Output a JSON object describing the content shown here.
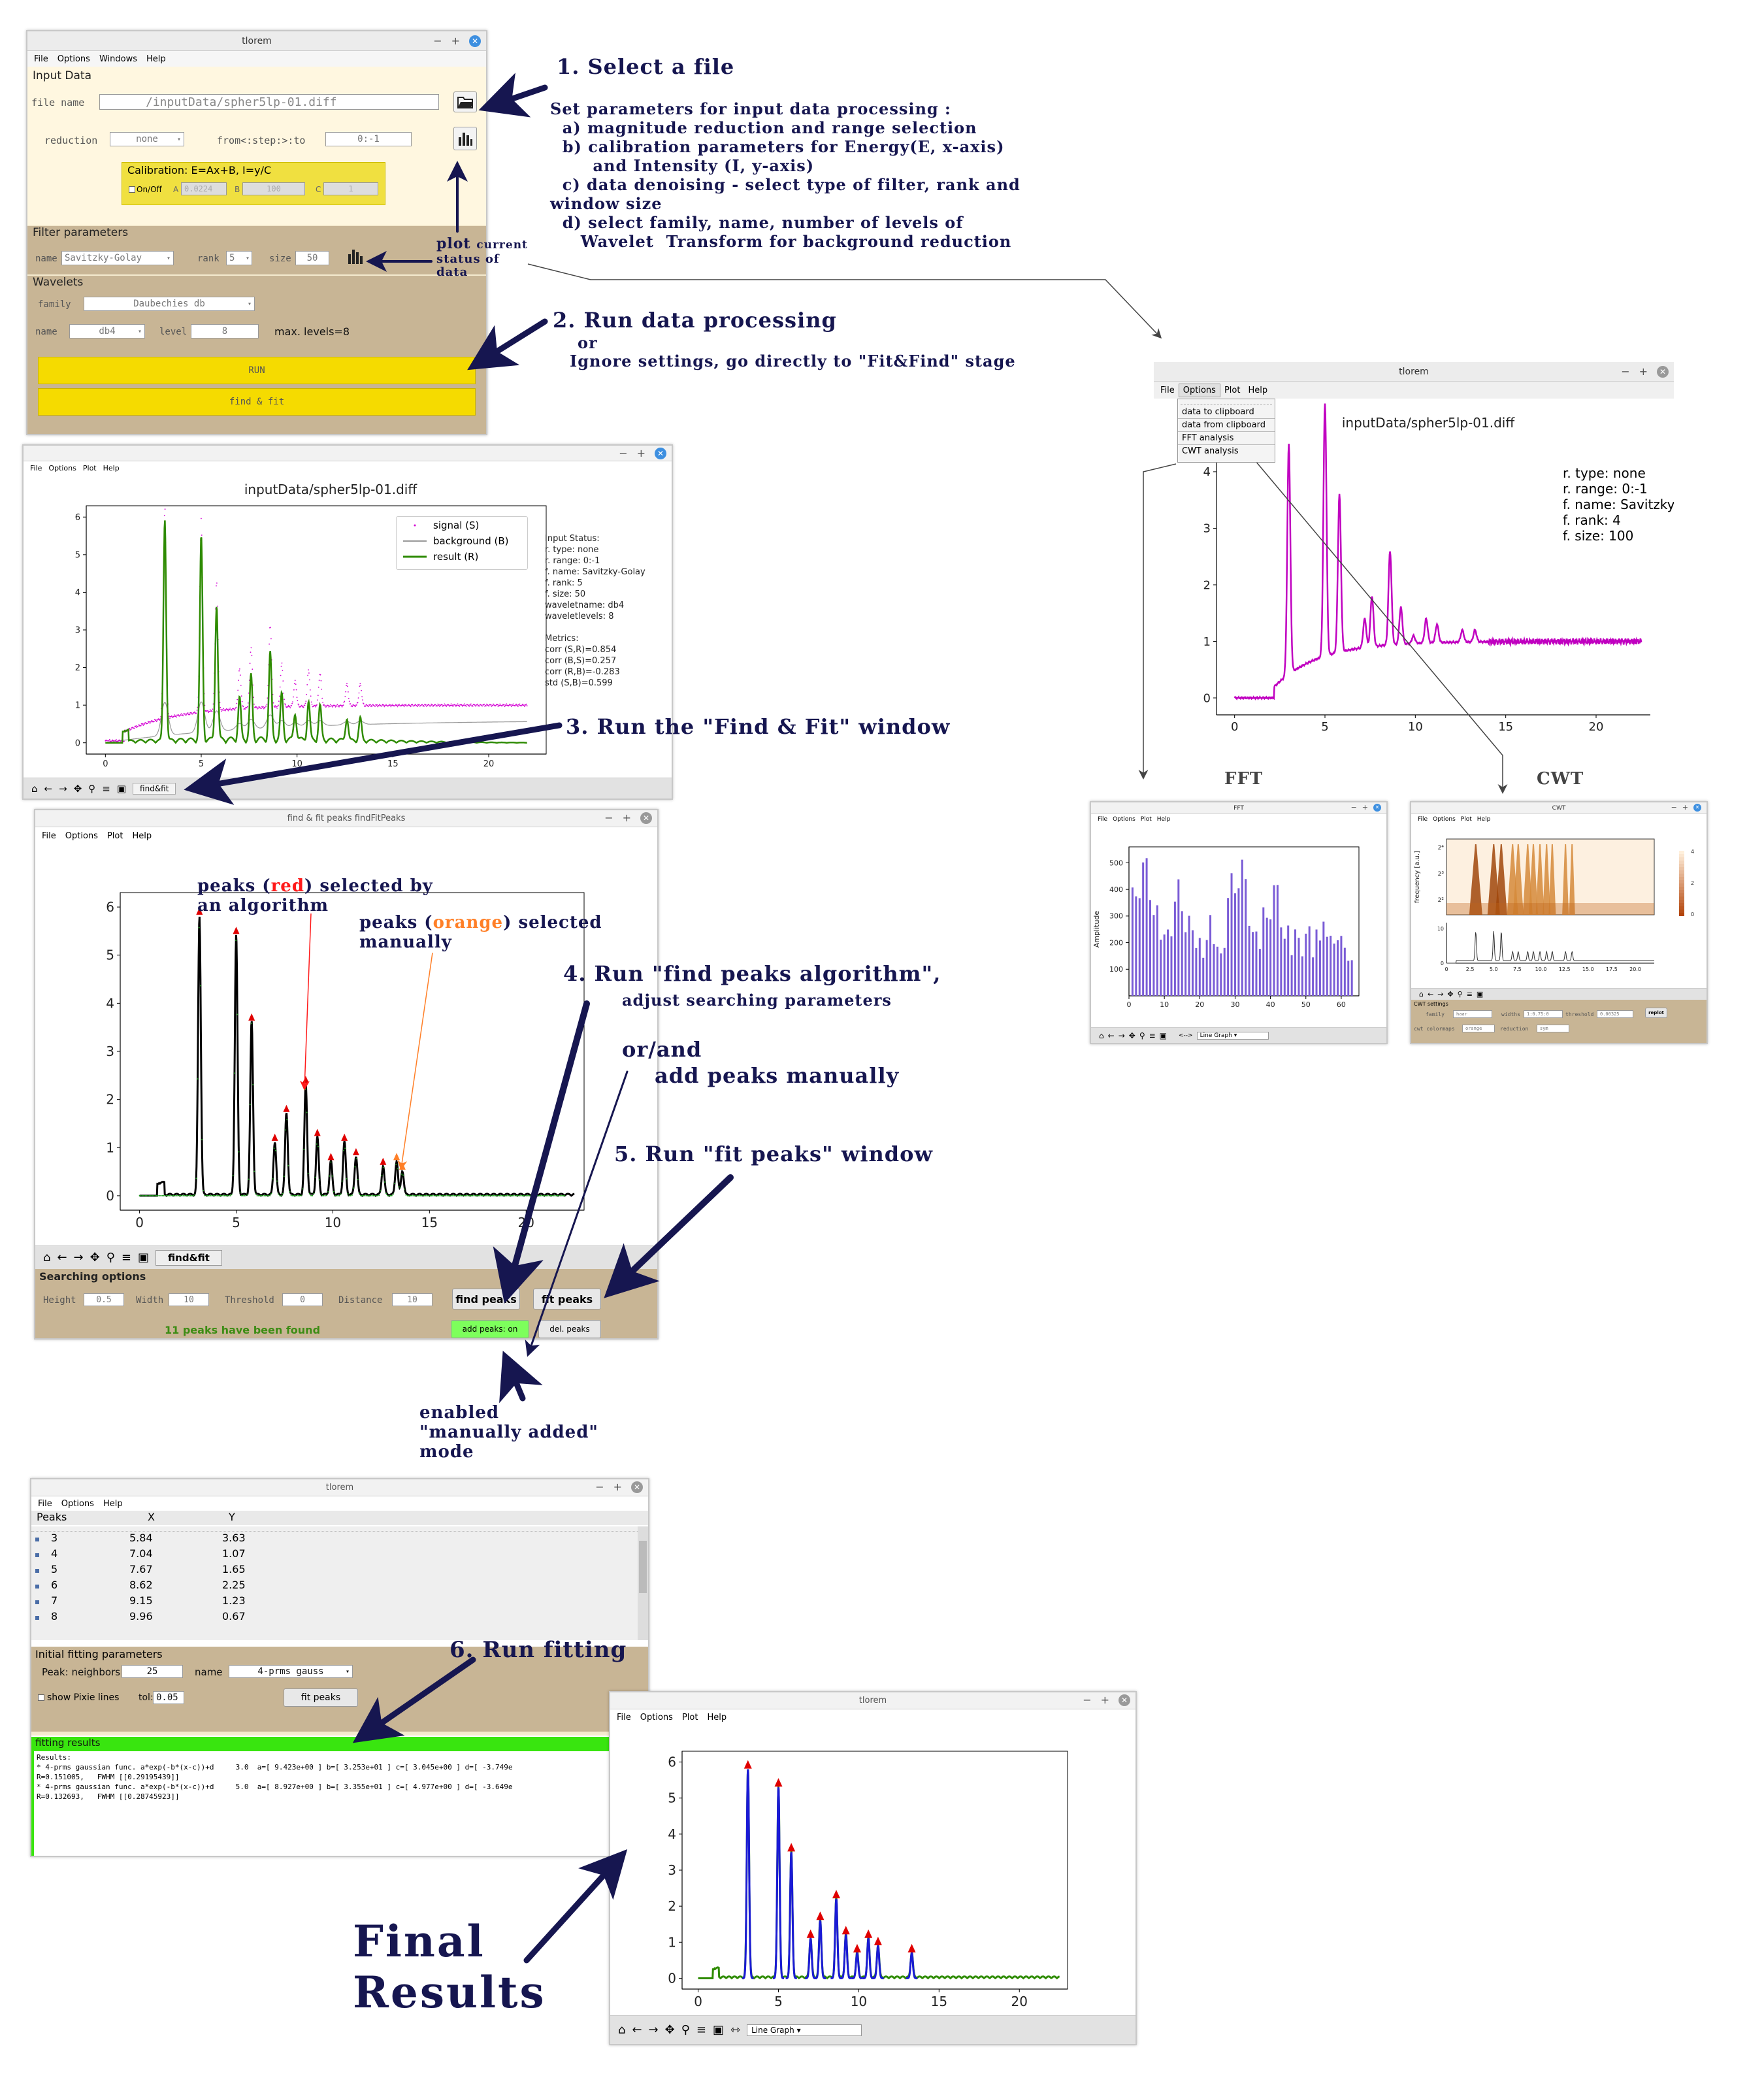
{
  "w1": {
    "title": "tlorem",
    "menu": [
      "File",
      "Options",
      "Windows",
      "Help"
    ],
    "input_data": "Input Data",
    "file_label": "file name",
    "file_value": "/inputData/spher5lp-01.diff",
    "reduction_label": "reduction",
    "reduction_value": "none",
    "range_label": "from<:step:>:to",
    "range_value": "0:-1",
    "calib_title": "Calibration: E=Ax+B,  I=y/C",
    "onoff": "On/Off",
    "A": "A",
    "A_val": "0.0224",
    "B": "B",
    "B_val": "100",
    "C": "C",
    "C_val": "1",
    "filter_title": "Filter parameters",
    "fname_label": "name",
    "fname_value": "Savitzky-Golay",
    "rank_label": "rank",
    "rank_value": "5",
    "size_label": "size",
    "size_value": "50",
    "wavelets_title": "Wavelets",
    "family_label": "family",
    "family_value": "Daubechies db",
    "wname_label": "name",
    "wname_value": "db4",
    "level_label": "level",
    "level_value": "8",
    "max_levels": "max. levels=8",
    "run": "RUN",
    "findfit": "find & fit"
  },
  "ann": {
    "a1": "1. Select a file",
    "a1_desc": [
      "Set parameters for input data processing :",
      "  a) magnitude reduction and range selection",
      "  b) calibration parameters for Energy(E, x-axis)",
      "       and Intensity (I, y-axis)",
      "  c) data denoising - select type of filter, rank and",
      "window size",
      "  d) select family, name, number of levels of",
      "     Wavelet  Transform for background reduction"
    ],
    "plot_current": "plot",
    "plot_current2": "current",
    "plot_status": "status of",
    "plot_data": "data",
    "a2": "2. Run data processing",
    "a2_or": "or",
    "a2_desc": "Ignore settings, go directly to \"Fit&Find\" stage",
    "a3": "3. Run the \"Find & Fit\" window",
    "a4": "4. Run \"find peaks algorithm\",",
    "a4_desc": "adjust searching parameters",
    "a4_or": "or/and",
    "a4_add": "add peaks manually",
    "a5": "5. Run \"fit peaks\" window",
    "enabled": [
      "enabled",
      "\"manually added\"",
      "mode"
    ],
    "peaks_red1": "peaks (",
    "peaks_red2": "red",
    "peaks_red3": ") selected by",
    "peaks_red4": "an algorithm",
    "peaks_or1": "peaks (",
    "peaks_or2": "orange",
    "peaks_or3": ") selected",
    "peaks_or4": "manually",
    "a6": "6. Run fitting",
    "final1": "Final",
    "final2": "Results",
    "fft": "FFT",
    "cwt": "CWT"
  },
  "w2": {
    "menu": [
      "File",
      "Options",
      "Plot",
      "Help"
    ],
    "title": "inputData/spher5lp-01.diff",
    "legend": [
      "signal (S)",
      "background (B)",
      "result (R)"
    ],
    "status": [
      "Input Status:",
      "r. type: none",
      "r. range: 0:-1",
      "f. name: Savitzky-Golay",
      "f. rank: 5",
      "f. size: 50",
      "waveletname: db4",
      "waveletlevels: 8",
      "",
      "Metrics:",
      "corr (S,R)=0.854",
      "corr (B,S)=0.257",
      "corr (R,B)=-0.283",
      "std (S,B)=0.599"
    ],
    "tool_btn": "find&fit"
  },
  "w3": {
    "title": "tlorem",
    "menu": [
      "File",
      "Options",
      "Plot",
      "Help"
    ],
    "dropdown": [
      "data  to  clipboard",
      "data from clipboard",
      "FFT analysis",
      "CWT analysis"
    ],
    "plot_title": "inputData/spher5lp-01.diff",
    "info": [
      "r. type: none",
      "r. range: 0:-1",
      "f. name: Savitzky",
      "f. rank: 4",
      "f. size: 100"
    ]
  },
  "fftw": {
    "title": "FFT",
    "menu": [
      "File",
      "Options",
      "Plot",
      "Help"
    ],
    "ylabel": "Amplitude",
    "select": "Line Graph",
    "arrow": "<-->"
  },
  "cwtw": {
    "title": "CWT",
    "menu": [
      "File",
      "Options",
      "Plot",
      "Help"
    ],
    "ylabel": "frequency [a.u.]",
    "settings": "CWT settings",
    "family_l": "family",
    "family_v": "haar",
    "width_l": "widths",
    "width_v": "1:0.75:0",
    "threshold_l": "threshold",
    "threshold_v": "0.00325",
    "show": "replot",
    "cmap_l": "cwt colormaps",
    "cmap_v": "orange",
    "red_l": "reduction",
    "red_v": "sym"
  },
  "w4": {
    "title": "find & fit peaks findFitPeaks",
    "menu": [
      "File",
      "Options",
      "Plot",
      "Help"
    ],
    "tool_btn": "find&fit",
    "search_title": "Searching options",
    "height_l": "Height",
    "height_v": "0.5",
    "width_l": "Width",
    "width_v": "10",
    "thr_l": "Threshold",
    "thr_v": "0",
    "dist_l": "Distance",
    "dist_v": "10",
    "find_btn": "find peaks",
    "fit_btn": "fit peaks",
    "found": "11 peaks have been found",
    "add_btn": "add peaks: on",
    "del_btn": "del. peaks"
  },
  "w5": {
    "title": "tlorem",
    "menu": [
      "File",
      "Options",
      "Help"
    ],
    "headers": [
      "Peaks",
      "X",
      "Y"
    ],
    "rows": [
      [
        "3",
        "5.84",
        "3.63"
      ],
      [
        "4",
        "7.04",
        "1.07"
      ],
      [
        "5",
        "7.67",
        "1.65"
      ],
      [
        "6",
        "8.62",
        "2.25"
      ],
      [
        "7",
        "9.15",
        "1.23"
      ],
      [
        "8",
        "9.96",
        "0.67"
      ]
    ],
    "init_title": "Initial fitting parameters",
    "neigh_l": "Peak: neighbors",
    "neigh_v": "25",
    "name_l": "name",
    "name_v": "4-prms gauss",
    "pixie": "show Pixie lines",
    "tol_l": "tol:",
    "tol_v": "0.05",
    "fit_btn": "fit peaks",
    "res_title": "fitting results",
    "results": [
      "Results:",
      "* 4-prms gaussian func. a*exp(-b*(x-c))+d     3.0  a=[ 9.423e+00 ] b=[ 3.253e+01 ] c=[ 3.045e+00 ] d=[ -3.749e",
      "R=0.151005,   FWHM [[0.29195439]]",
      "* 4-prms gaussian func. a*exp(-b*(x-c))+d     5.0  a=[ 8.927e+00 ] b=[ 3.355e+01 ] c=[ 4.977e+00 ] d=[ -3.649e",
      "R=0.132693,   FWHM [[0.28745923]]"
    ]
  },
  "w6": {
    "title": "tlorem",
    "menu": [
      "File",
      "Options",
      "Plot",
      "Help"
    ],
    "select": "Line Graph"
  },
  "chart_data": [
    {
      "type": "line",
      "title": "inputData/spher5lp-01.diff",
      "xlim": [
        -1,
        23
      ],
      "ylim": [
        -0.3,
        6.3
      ],
      "xticks": [
        0,
        5,
        10,
        15,
        20
      ],
      "yticks": [
        0,
        1,
        2,
        3,
        4,
        5,
        6
      ],
      "series": [
        {
          "name": "signal (S)",
          "color": "#d400d4",
          "x": [
            0,
            1,
            2,
            3,
            4,
            5,
            6,
            7,
            8,
            9,
            10,
            11,
            12,
            13,
            14,
            15,
            16,
            17,
            18,
            19,
            20,
            21,
            22
          ],
          "y": [
            0.05,
            0.2,
            0.35,
            1.0,
            0.8,
            1.3,
            1.0,
            1.15,
            1.5,
            1.4,
            1.3,
            1.2,
            1.2,
            1.1,
            1.05,
            1.05,
            1.0,
            1.05,
            1.0,
            1.0,
            1.0,
            1.0,
            1.0
          ]
        },
        {
          "name": "background (B)",
          "color": "#999999",
          "x": [
            0,
            5,
            10,
            15,
            20,
            22
          ],
          "y": [
            0,
            0.15,
            0.3,
            0.45,
            0.55,
            0.6
          ]
        },
        {
          "name": "result (R)",
          "color": "#2e8b00",
          "x": [
            3.1,
            5.0,
            5.8,
            7.0,
            7.6,
            8.6,
            9.2,
            9.9,
            10.6,
            11.2,
            12.6,
            13.3
          ],
          "y": [
            5.9,
            5.4,
            3.6,
            1.1,
            1.7,
            2.3,
            1.2,
            0.7,
            1.0,
            0.9,
            0.6,
            0.6
          ]
        }
      ]
    },
    {
      "type": "line",
      "title": "inputData/spher5lp-01.diff",
      "xlim": [
        -1,
        23
      ],
      "ylim": [
        -0.3,
        4.6
      ],
      "xticks": [
        0,
        5,
        10,
        15,
        20
      ],
      "yticks": [
        0,
        1,
        2,
        3,
        4
      ],
      "series": [
        {
          "name": "",
          "color": "#c000c0",
          "x": [
            3.0,
            5.0,
            5.8,
            7.2,
            7.6,
            8.6,
            9.2,
            9.9,
            10.6,
            11.2,
            12.6,
            13.3
          ],
          "y": [
            4.5,
            5.2,
            3.6,
            1.4,
            1.8,
            2.6,
            1.6,
            1.1,
            1.4,
            1.3,
            1.2,
            1.2
          ]
        }
      ]
    },
    {
      "type": "bar",
      "title": "FFT",
      "ylabel": "Amplitude",
      "xlim": [
        0,
        65
      ],
      "ylim": [
        0,
        560
      ],
      "xticks": [
        0,
        10,
        20,
        30,
        40,
        50,
        60
      ],
      "yticks": [
        100,
        200,
        300,
        400,
        500
      ]
    },
    {
      "type": "heatmap",
      "title": "CWT",
      "ylabel": "frequency [a.u.]",
      "xticks": [
        "0",
        "2.5",
        "5.0",
        "7.5",
        "10.0",
        "12.5",
        "15.0",
        "17.5",
        "20.0"
      ],
      "colorbar": [
        0,
        2,
        4
      ]
    },
    {
      "type": "line",
      "xlim": [
        -1,
        23
      ],
      "ylim": [
        -0.3,
        6.3
      ],
      "xticks": [
        0,
        5,
        10,
        15,
        20
      ],
      "yticks": [
        0,
        1,
        2,
        3,
        4,
        5,
        6
      ],
      "series": [
        {
          "name": "",
          "color": "#000000",
          "x": [
            3.1,
            5.0,
            5.8,
            7.0,
            7.6,
            8.6,
            9.2,
            9.9,
            10.6,
            11.2,
            12.6,
            13.3,
            13.6
          ],
          "y": [
            5.8,
            5.4,
            3.6,
            1.1,
            1.7,
            2.3,
            1.2,
            0.7,
            1.1,
            0.8,
            0.6,
            0.7,
            0.5
          ]
        }
      ]
    },
    {
      "type": "line",
      "xlim": [
        -1,
        23
      ],
      "ylim": [
        -0.3,
        6.3
      ],
      "xticks": [
        0,
        5,
        10,
        15,
        20
      ],
      "yticks": [
        0,
        1,
        2,
        3,
        4,
        5,
        6
      ],
      "series": [
        {
          "name": "",
          "color": "#2e8b00",
          "x": [
            3.1,
            5.0,
            5.8,
            7.0,
            7.6,
            8.6,
            9.2,
            9.9,
            10.6,
            11.2,
            13.3
          ],
          "y": [
            5.8,
            5.3,
            3.5,
            1.1,
            1.6,
            2.2,
            1.2,
            0.7,
            1.1,
            0.9,
            0.7
          ]
        }
      ]
    }
  ]
}
